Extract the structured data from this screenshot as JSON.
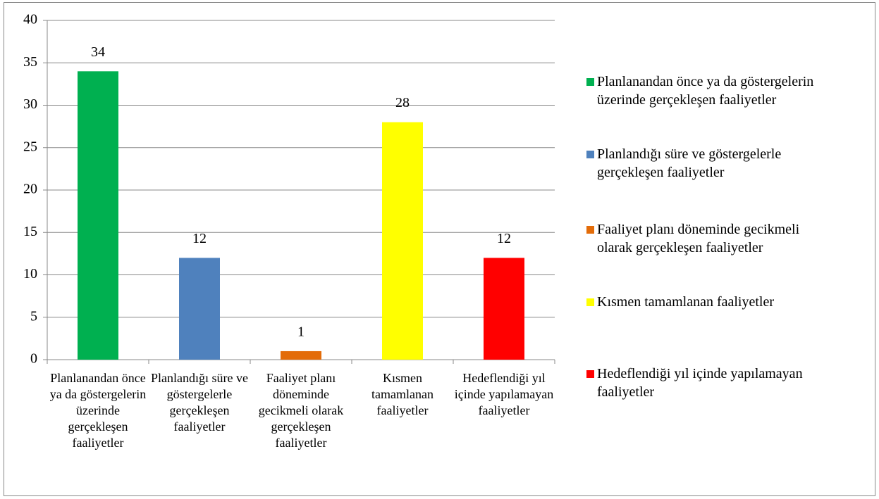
{
  "chart_data": {
    "type": "bar",
    "categories": [
      "Planlanandan önce ya da göstergelerin üzerinde gerçekleşen faaliyetler",
      "Planlandığı süre ve göstergelerle gerçekleşen faaliyetler",
      "Faaliyet planı döneminde gecikmeli olarak gerçekleşen faaliyetler",
      "Kısmen tamamlanan faaliyetler",
      "Hedeflendiği yıl içinde yapılamayan faaliyetler"
    ],
    "values": [
      34,
      12,
      1,
      28,
      12
    ],
    "colors": [
      "#00b050",
      "#4f81bd",
      "#e36c09",
      "#ffff00",
      "#ff0000"
    ],
    "ylim": [
      0,
      40
    ],
    "yticks": [
      0,
      5,
      10,
      15,
      20,
      25,
      30,
      35,
      40
    ],
    "grid": true,
    "legend": "right"
  }
}
